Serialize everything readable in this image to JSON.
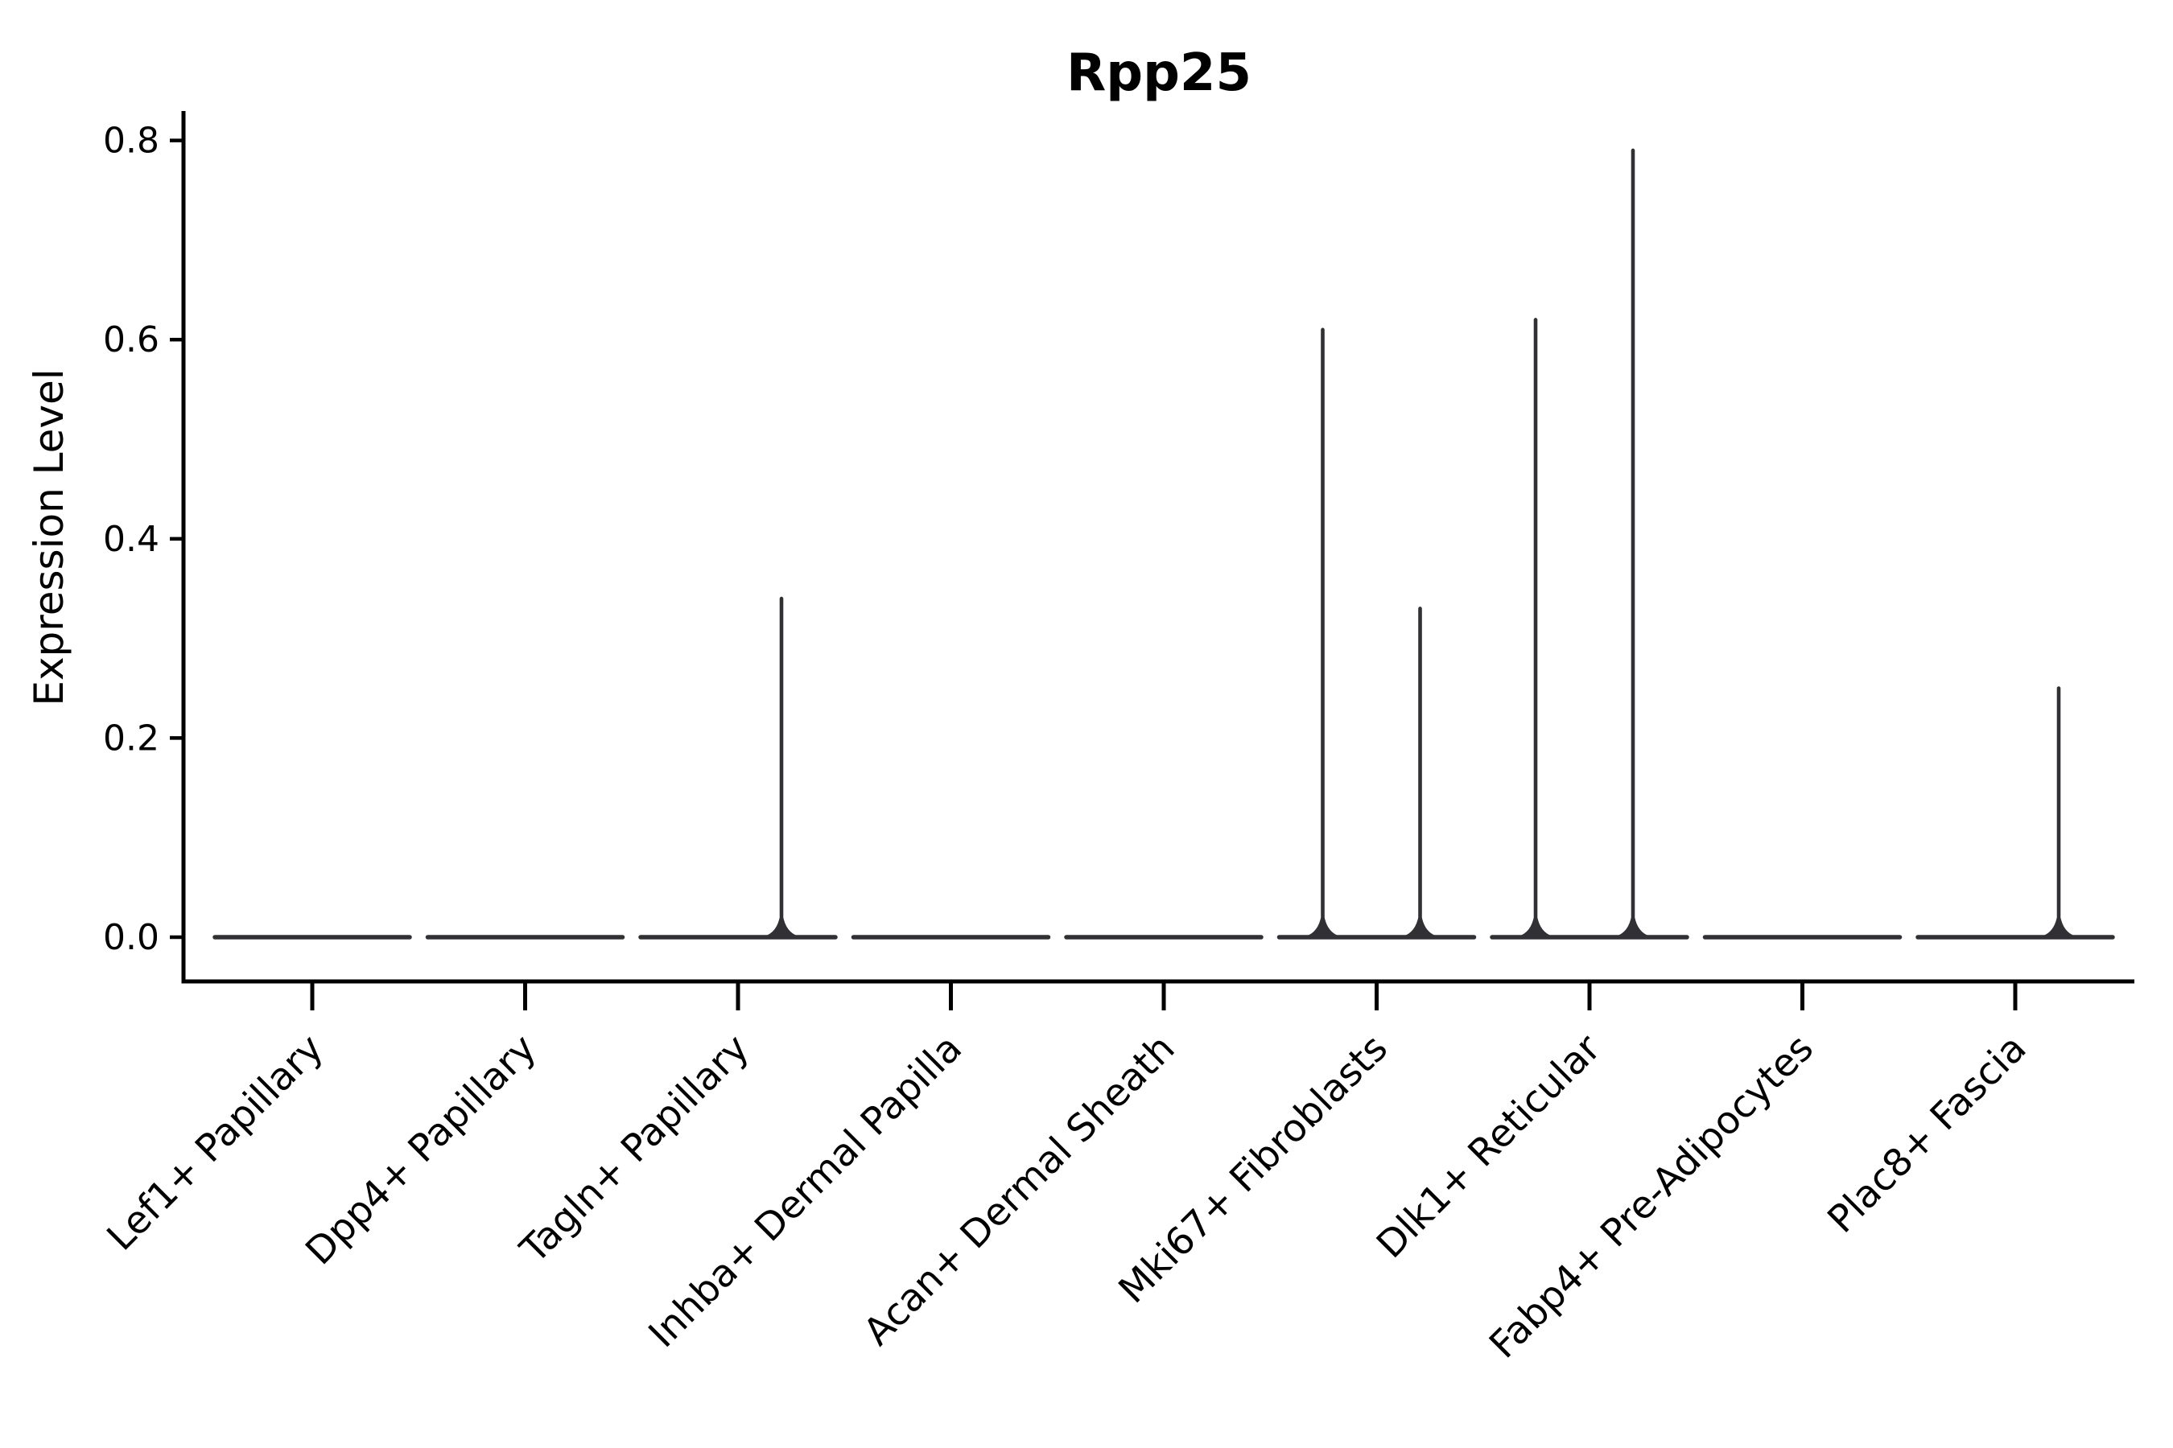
{
  "figure": {
    "background": "#ffffff"
  },
  "chart_data": {
    "type": "violin",
    "title": "Rpp25",
    "xlabel": "",
    "ylabel": "Expression Level",
    "grid": false,
    "legend": null,
    "ylim": [
      -0.045,
      0.835
    ],
    "ytick_labels": [
      "0.0",
      "0.2",
      "0.4",
      "0.6",
      "0.8"
    ],
    "ytick_values": [
      0.0,
      0.2,
      0.4,
      0.6,
      0.8
    ],
    "categories": [
      "Lef1+ Papillary",
      "Dpp4+ Papillary",
      "Tagln+ Papillary",
      "Inhba+ Dermal Papilla",
      "Acan+ Dermal Sheath",
      "Mki67+ Fibroblasts",
      "Dlk1+ Reticular",
      "Fabp4+ Pre-Adipocytes",
      "Plac8+ Fascia"
    ],
    "violins": [
      {
        "category": "Lef1+ Papillary",
        "base_value": 0.0,
        "spikes": []
      },
      {
        "category": "Dpp4+ Papillary",
        "base_value": 0.0,
        "spikes": []
      },
      {
        "category": "Tagln+ Papillary",
        "base_value": 0.0,
        "spikes": [
          {
            "value": 0.34,
            "side": "right"
          }
        ]
      },
      {
        "category": "Inhba+ Dermal Papilla",
        "base_value": 0.0,
        "spikes": []
      },
      {
        "category": "Acan+ Dermal Sheath",
        "base_value": 0.0,
        "spikes": []
      },
      {
        "category": "Mki67+ Fibroblasts",
        "base_value": 0.0,
        "spikes": [
          {
            "value": 0.61,
            "side": "left"
          },
          {
            "value": 0.33,
            "side": "right"
          }
        ]
      },
      {
        "category": "Dlk1+ Reticular",
        "base_value": 0.0,
        "spikes": [
          {
            "value": 0.62,
            "side": "left"
          },
          {
            "value": 0.79,
            "side": "right"
          }
        ]
      },
      {
        "category": "Fabp4+ Pre-Adipocytes",
        "base_value": 0.0,
        "spikes": []
      },
      {
        "category": "Plac8+ Fascia",
        "base_value": 0.0,
        "spikes": [
          {
            "value": 0.25,
            "side": "right"
          }
        ]
      }
    ],
    "colors": {
      "violin_line": "#313135",
      "axis": "#000000",
      "text": "#000000",
      "background": "#ffffff"
    }
  }
}
